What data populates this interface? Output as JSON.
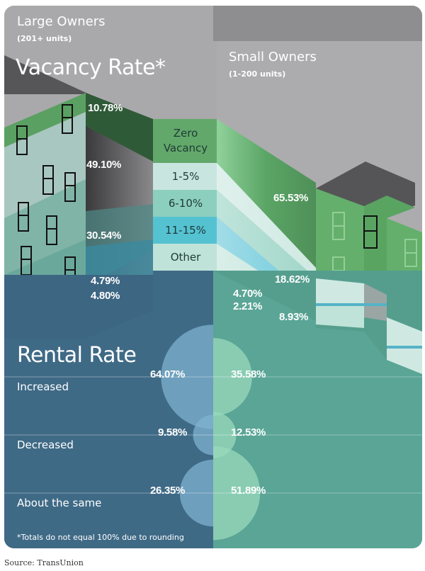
{
  "header": {
    "left_group": "Large Owners",
    "left_sub": "(201+ units)",
    "right_group": "Small Owners",
    "right_sub": "(1-200 units)"
  },
  "vacancy_title": "Vacancy Rate*",
  "rental_title": "Rental Rate",
  "footnote": "*Totals do not equal 100% due to rounding",
  "source": "Source: TransUnion",
  "colors": {
    "zero_vacancy": "#63a86b",
    "r1_5": "#c8e6df",
    "r6_10": "#8ccfbf",
    "r11_15": "#55c2d2",
    "other": "#bfe3d8",
    "large_owner_panel": "#3f6885",
    "small_owner_panel": "#4e9a8a"
  },
  "chart_data": [
    {
      "type": "bar",
      "title": "Vacancy Rate*",
      "categories": [
        "Zero Vacancy",
        "1-5%",
        "6-10%",
        "11-15%",
        "Other"
      ],
      "series": [
        {
          "name": "Large Owners (201+ units)",
          "values": [
            10.78,
            49.1,
            30.54,
            4.79,
            4.8
          ],
          "labels": [
            "10.78%",
            "49.10%",
            "30.54%",
            "4.79%",
            "4.80%"
          ]
        },
        {
          "name": "Small Owners (1-200 units)",
          "values": [
            65.53,
            18.62,
            4.7,
            2.21,
            8.93
          ],
          "labels": [
            "65.53%",
            "18.62%",
            "4.70%",
            "2.21%",
            "8.93%"
          ]
        }
      ],
      "unit": "%"
    },
    {
      "type": "scatter",
      "title": "Rental Rate",
      "categories": [
        "Increased",
        "Decreased",
        "About the same"
      ],
      "series": [
        {
          "name": "Large Owners (201+ units)",
          "values": [
            64.07,
            9.58,
            26.35
          ],
          "labels": [
            "64.07%",
            "9.58%",
            "26.35%"
          ]
        },
        {
          "name": "Small Owners (1-200 units)",
          "values": [
            35.58,
            12.53,
            51.89
          ],
          "labels": [
            "35.58%",
            "12.53%",
            "51.89%"
          ]
        }
      ],
      "unit": "%",
      "footnote": "*Totals do not equal 100% due to rounding"
    }
  ]
}
